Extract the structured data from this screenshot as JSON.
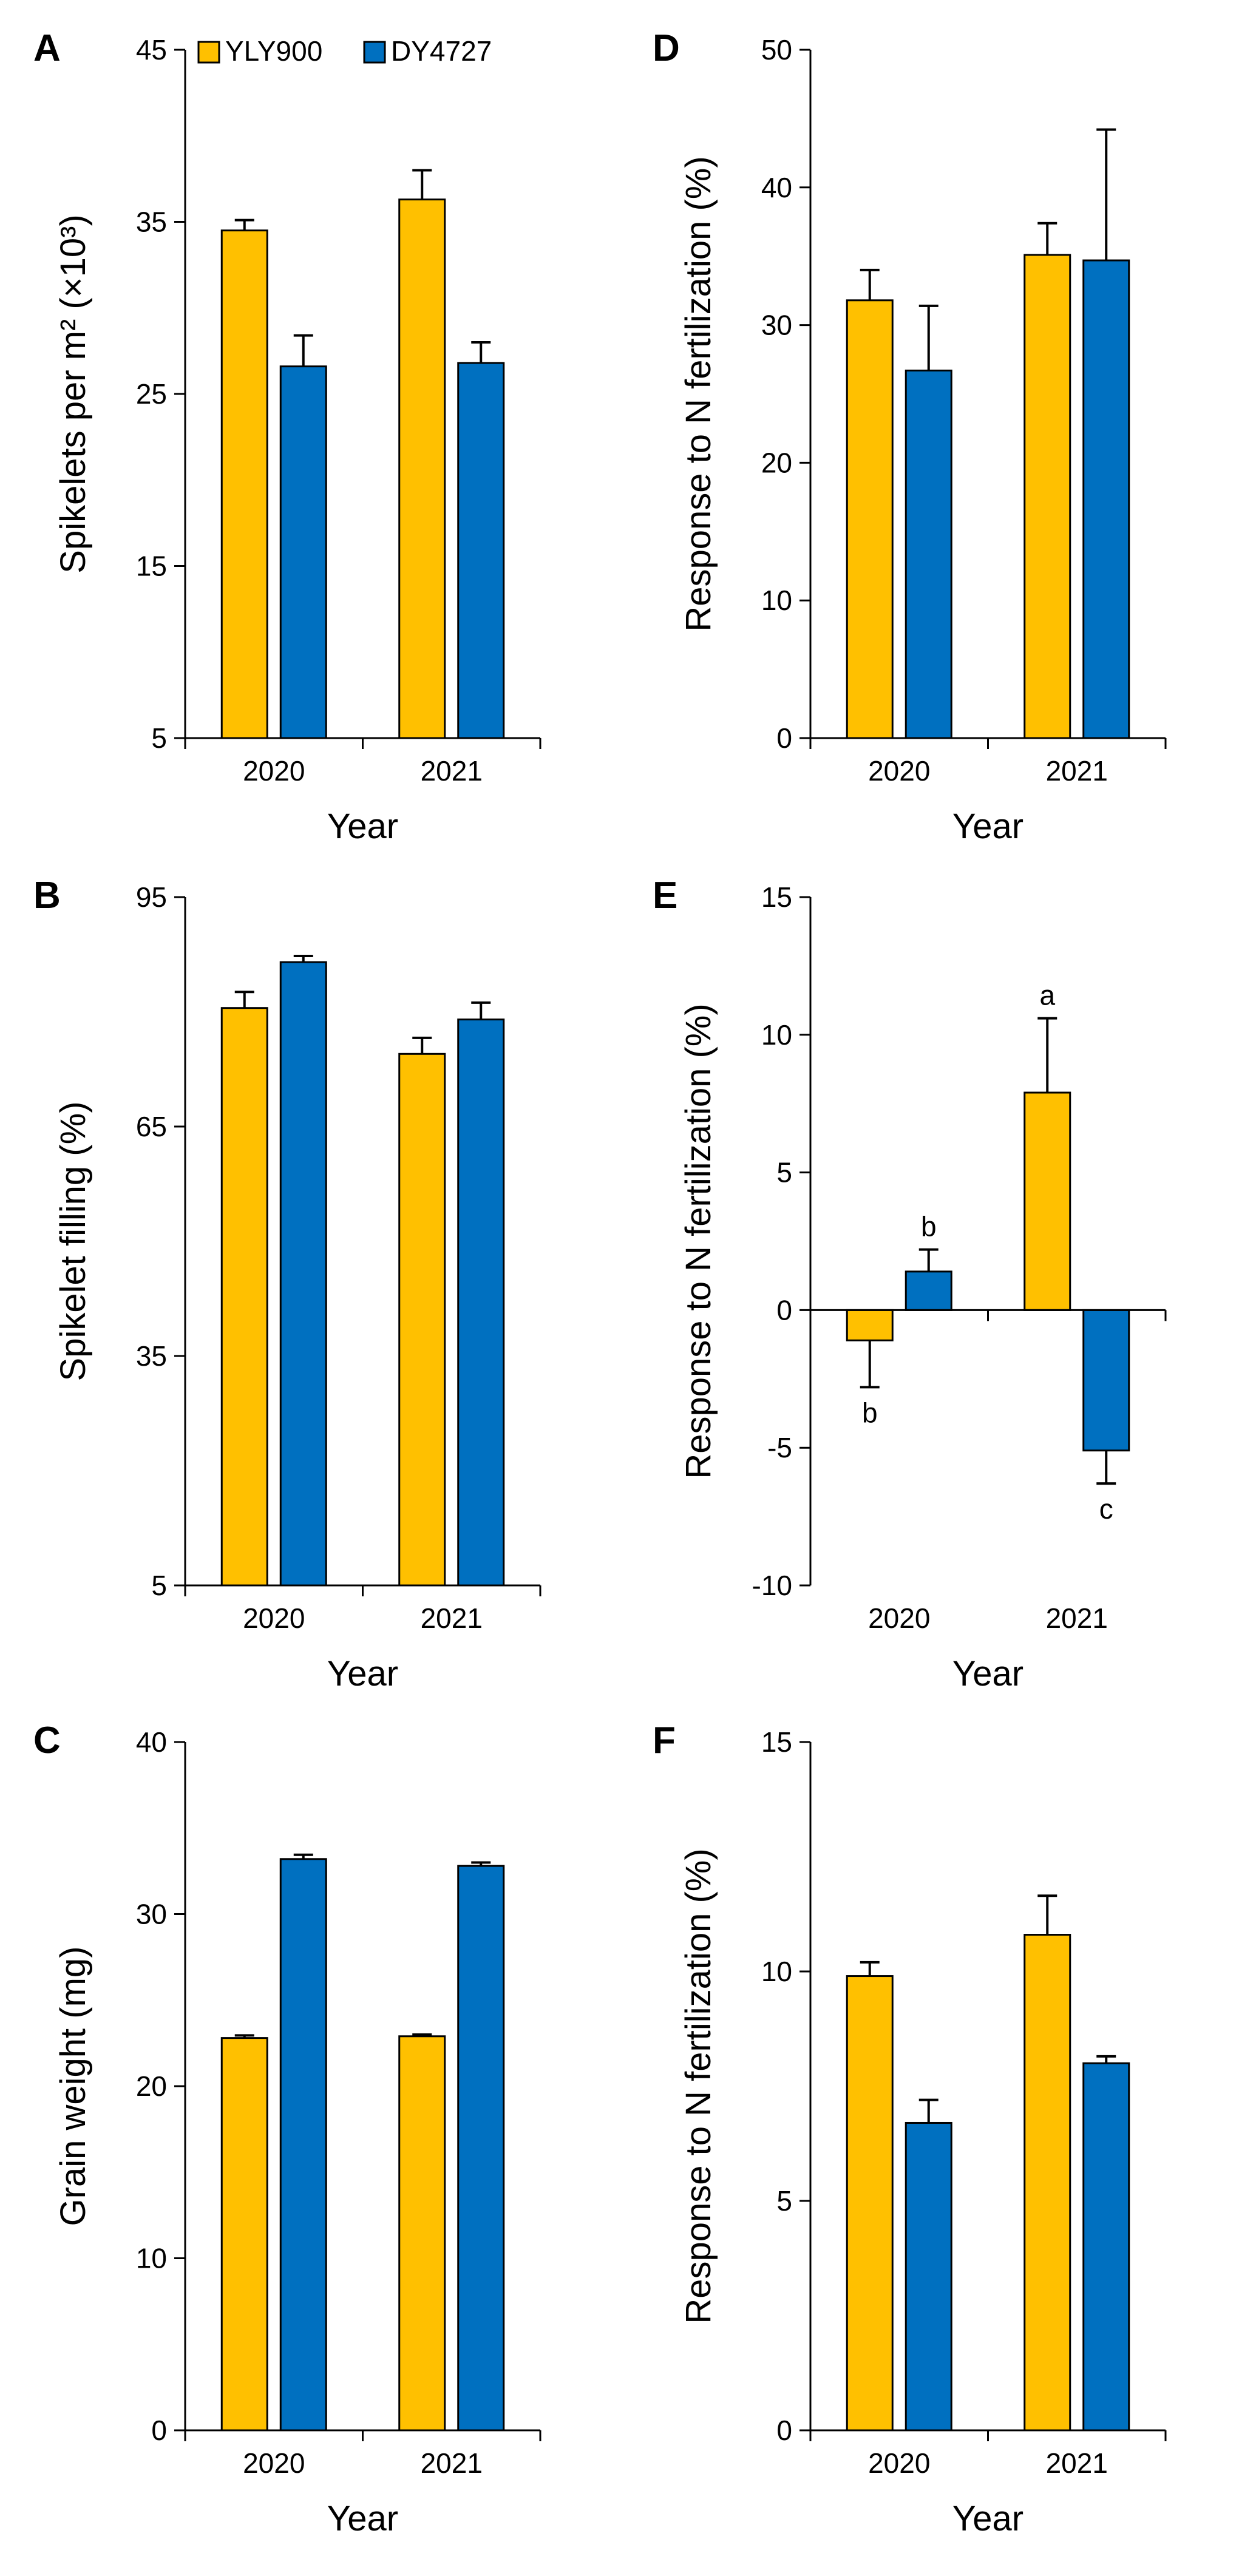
{
  "colors": {
    "YLY900": "#FFC000",
    "DY4727": "#0070C0",
    "axis": "#000000"
  },
  "legend": {
    "items": [
      {
        "label": "YLY900"
      },
      {
        "label": "DY4727"
      }
    ]
  },
  "chart_data": [
    {
      "id": "A",
      "type": "bar",
      "letter": "A",
      "ylabel": "Spikelets per m² (×10³)",
      "xlabel": "Year",
      "categories": [
        "2020",
        "2021"
      ],
      "ylim": [
        5,
        45
      ],
      "yticks": [
        5,
        15,
        25,
        35,
        45
      ],
      "series": [
        {
          "name": "YLY900",
          "values": [
            34.5,
            36.3
          ],
          "errors": [
            0.6,
            1.7
          ]
        },
        {
          "name": "DY4727",
          "values": [
            26.6,
            26.8
          ],
          "errors": [
            1.8,
            1.2
          ]
        }
      ],
      "legend": true
    },
    {
      "id": "B",
      "type": "bar",
      "letter": "B",
      "ylabel": "Spikelet filling (%)",
      "xlabel": "Year",
      "categories": [
        "2020",
        "2021"
      ],
      "ylim": [
        5,
        95
      ],
      "yticks": [
        5,
        35,
        65,
        95
      ],
      "series": [
        {
          "name": "YLY900",
          "values": [
            80.5,
            74.5
          ],
          "errors": [
            2.1,
            2.1
          ]
        },
        {
          "name": "DY4727",
          "values": [
            86.5,
            79.0
          ],
          "errors": [
            0.8,
            2.2
          ]
        }
      ]
    },
    {
      "id": "C",
      "type": "bar",
      "letter": "C",
      "ylabel": "Grain weight (mg)",
      "xlabel": "Year",
      "categories": [
        "2020",
        "2021"
      ],
      "ylim": [
        0,
        40
      ],
      "yticks": [
        0,
        10,
        20,
        30,
        40
      ],
      "series": [
        {
          "name": "YLY900",
          "values": [
            22.8,
            22.9
          ],
          "errors": [
            0.15,
            0.1
          ]
        },
        {
          "name": "DY4727",
          "values": [
            33.2,
            32.8
          ],
          "errors": [
            0.25,
            0.2
          ]
        }
      ]
    },
    {
      "id": "D",
      "type": "bar",
      "letter": "D",
      "ylabel": "Response to N fertilization (%)",
      "xlabel": "Year",
      "categories": [
        "2020",
        "2021"
      ],
      "ylim": [
        0,
        50
      ],
      "yticks": [
        0,
        10,
        20,
        30,
        40,
        50
      ],
      "series": [
        {
          "name": "YLY900",
          "values": [
            31.8,
            35.1
          ],
          "errors": [
            2.2,
            2.3
          ]
        },
        {
          "name": "DY4727",
          "values": [
            26.7,
            34.7
          ],
          "errors": [
            4.7,
            9.5
          ]
        }
      ]
    },
    {
      "id": "E",
      "type": "bar",
      "letter": "E",
      "ylabel": "Response to N fertilization (%)",
      "xlabel": "Year",
      "categories": [
        "2020",
        "2021"
      ],
      "ylim": [
        -10,
        15
      ],
      "yticks": [
        -10,
        -5,
        0,
        5,
        10,
        15
      ],
      "series": [
        {
          "name": "YLY900",
          "values": [
            -1.1,
            7.9
          ],
          "errors": [
            1.7,
            2.7
          ],
          "labels": [
            "b",
            "a"
          ]
        },
        {
          "name": "DY4727",
          "values": [
            1.4,
            -5.1
          ],
          "errors": [
            0.8,
            1.2
          ],
          "labels": [
            "b",
            "c"
          ]
        }
      ]
    },
    {
      "id": "F",
      "type": "bar",
      "letter": "F",
      "ylabel": "Response to N fertilization (%)",
      "xlabel": "Year",
      "categories": [
        "2020",
        "2021"
      ],
      "ylim": [
        0,
        15
      ],
      "yticks": [
        0,
        5,
        10,
        15
      ],
      "series": [
        {
          "name": "YLY900",
          "values": [
            9.9,
            10.8
          ],
          "errors": [
            0.3,
            0.85
          ]
        },
        {
          "name": "DY4727",
          "values": [
            6.7,
            8.0
          ],
          "errors": [
            0.5,
            0.15
          ]
        }
      ]
    }
  ]
}
